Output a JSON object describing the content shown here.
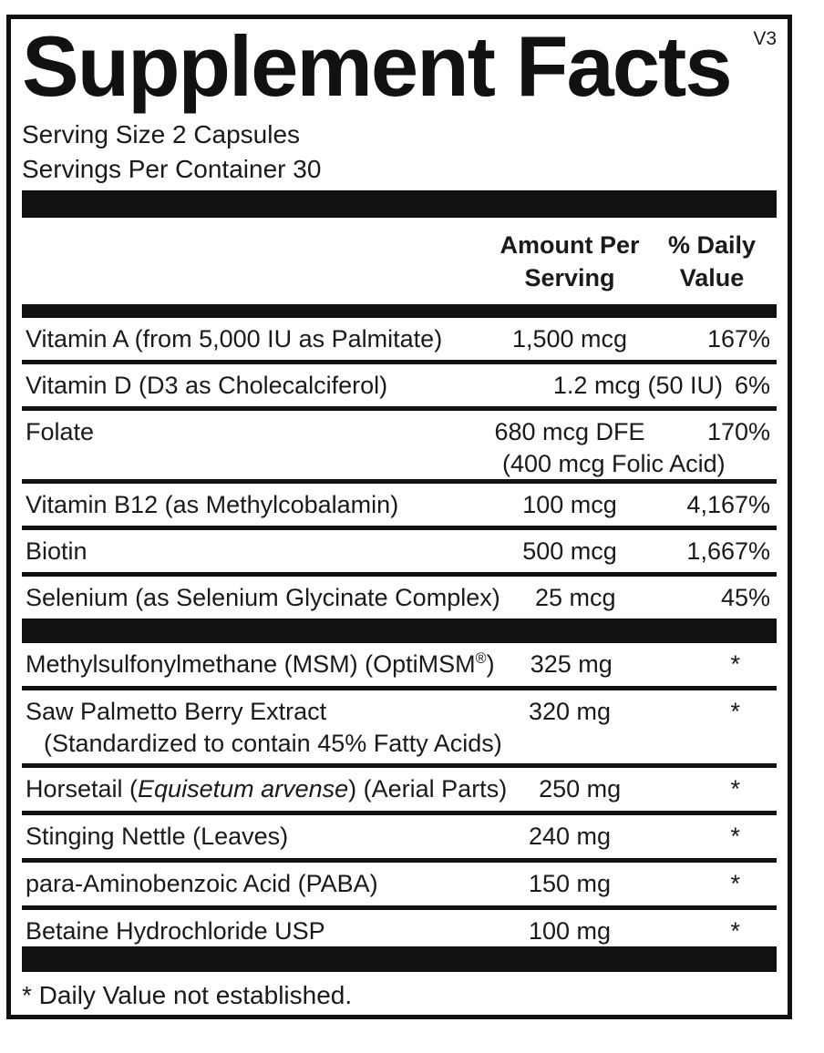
{
  "panel": {
    "version": "V3",
    "title": "Supplement Facts",
    "serving_size": "Serving Size 2 Capsules",
    "servings_per_container": "Servings Per Container 30",
    "columns": {
      "amount": "Amount Per Serving",
      "daily_value": "% Daily Value"
    },
    "nutrients": [
      {
        "name": "Vitamin A (from 5,000 IU as Palmitate)",
        "amount": "1,500 mcg",
        "daily_value": "167%"
      },
      {
        "name": "Vitamin D (D3 as Cholecalciferol)",
        "amount": "1.2 mcg (50 IU)",
        "daily_value": "6%"
      },
      {
        "name": "Folate",
        "amount": "680 mcg DFE",
        "amount_note": "(400 mcg Folic Acid)",
        "daily_value": "170%"
      },
      {
        "name": "Vitamin B12 (as Methylcobalamin)",
        "amount": "100 mcg",
        "daily_value": "4,167%"
      },
      {
        "name": "Biotin",
        "amount": "500 mcg",
        "daily_value": "1,667%"
      },
      {
        "name": "Selenium (as Selenium Glycinate Complex)",
        "amount": "25 mcg",
        "daily_value": "45%"
      }
    ],
    "other_ingredients": [
      {
        "name_prefix": "Methylsulfonylmethane (MSM) (OptiMSM",
        "name_sup": "®",
        "name_suffix": ")",
        "amount": "325 mg",
        "daily_value": "*"
      },
      {
        "name": "Saw Palmetto Berry Extract",
        "name_note": "(Standardized to contain 45% Fatty Acids)",
        "amount": "320 mg",
        "daily_value": "*"
      },
      {
        "name_prefix": "Horsetail (",
        "name_italic": "Equisetum arvense",
        "name_suffix": ") (Aerial Parts)",
        "amount": "250 mg",
        "daily_value": "*"
      },
      {
        "name": "Stinging Nettle (Leaves)",
        "amount": "240 mg",
        "daily_value": "*"
      },
      {
        "name": "para-Aminobenzoic Acid (PABA)",
        "amount": "150 mg",
        "daily_value": "*"
      },
      {
        "name": "Betaine Hydrochloride USP",
        "amount": "100 mg",
        "daily_value": "*"
      }
    ],
    "footnote": "* Daily Value not established."
  },
  "colors": {
    "ink": "#111111",
    "background": "#ffffff"
  }
}
